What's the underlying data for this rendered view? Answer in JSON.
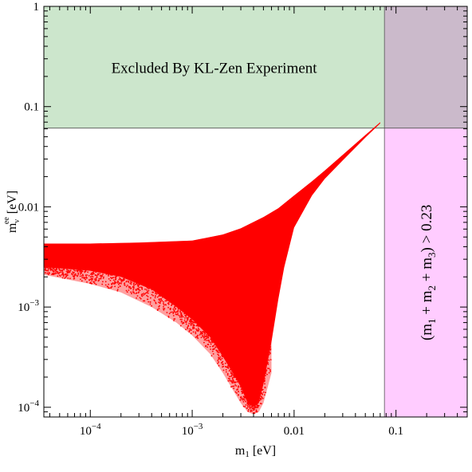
{
  "chart_data": {
    "type": "scatter",
    "title": "",
    "xlabel": {
      "main": "m",
      "sub": "1",
      "unit": " [eV]"
    },
    "ylabel": {
      "main": "m",
      "sub": "ν",
      "sup": "ee",
      "unit": " [eV]"
    },
    "x_scale": "log",
    "y_scale": "log",
    "xlim": [
      3.5e-05,
      0.5
    ],
    "ylim": [
      8e-05,
      1
    ],
    "grid": false,
    "x_ticks": [
      {
        "value": 0.0001,
        "base": "10",
        "exp": "−4"
      },
      {
        "value": 0.001,
        "base": "10",
        "exp": "−3"
      },
      {
        "value": 0.01,
        "label": "0.01"
      },
      {
        "value": 0.1,
        "label": "0.1"
      }
    ],
    "y_ticks": [
      {
        "value": 0.0001,
        "base": "10",
        "exp": "−4"
      },
      {
        "value": 0.001,
        "base": "10",
        "exp": "−3"
      },
      {
        "value": 0.01,
        "label": "0.01"
      },
      {
        "value": 0.1,
        "label": "0.1"
      },
      {
        "value": 1,
        "label": "1"
      }
    ],
    "regions": {
      "excluded_kl_zen": {
        "label": "Excluded By KL-Zen Experiment",
        "x_range": [
          3.5e-05,
          0.5
        ],
        "y_range": [
          0.061,
          1
        ],
        "color": "#cce6cc"
      },
      "sum_mass_excluded": {
        "label": {
          "open": "(m",
          "s1": "1",
          "plus1": " + m",
          "s2": "2",
          "plus2": " + m",
          "s3": "3",
          "close": ") > 0.23"
        },
        "x_range": [
          0.077,
          0.5
        ],
        "y_range": [
          8e-05,
          1
        ],
        "color": "#ffccff"
      },
      "overlap": {
        "x_range": [
          0.077,
          0.5
        ],
        "y_range": [
          0.061,
          1
        ],
        "color": "#cbbacb"
      }
    },
    "series": [
      {
        "color": "#ff0000",
        "upper_edge": [
          [
            3.5e-05,
            0.0043
          ],
          [
            0.0001,
            0.0043
          ],
          [
            0.0003,
            0.0044
          ],
          [
            0.001,
            0.0046
          ],
          [
            0.002,
            0.0053
          ],
          [
            0.003,
            0.0061
          ],
          [
            0.005,
            0.0079
          ],
          [
            0.007,
            0.0097
          ],
          [
            0.01,
            0.013
          ],
          [
            0.015,
            0.018
          ],
          [
            0.02,
            0.023
          ],
          [
            0.03,
            0.033
          ],
          [
            0.05,
            0.052
          ],
          [
            0.07,
            0.07
          ]
        ],
        "lower_edge": [
          [
            3.5e-05,
            0.0025
          ],
          [
            0.0001,
            0.0023
          ],
          [
            0.0002,
            0.002
          ],
          [
            0.0004,
            0.0015
          ],
          [
            0.0007,
            0.001
          ],
          [
            0.001,
            0.00075
          ],
          [
            0.0015,
            0.0005
          ],
          [
            0.002,
            0.00032
          ],
          [
            0.0025,
            0.00022
          ],
          [
            0.003,
            0.00016
          ],
          [
            0.0035,
            0.00011
          ],
          [
            0.004,
            0.0001
          ],
          [
            0.0045,
            0.00011
          ],
          [
            0.005,
            0.00017
          ],
          [
            0.006,
            0.00045
          ],
          [
            0.007,
            0.0012
          ],
          [
            0.008,
            0.0025
          ],
          [
            0.01,
            0.0062
          ],
          [
            0.015,
            0.013
          ],
          [
            0.02,
            0.019
          ],
          [
            0.03,
            0.029
          ],
          [
            0.05,
            0.049
          ],
          [
            0.07,
            0.068
          ]
        ],
        "outer_lower_edge": [
          [
            3.5e-05,
            0.0021
          ],
          [
            0.0001,
            0.0017
          ],
          [
            0.0002,
            0.0014
          ],
          [
            0.0004,
            0.001
          ],
          [
            0.0007,
            0.0007
          ],
          [
            0.001,
            0.00052
          ],
          [
            0.0015,
            0.00034
          ],
          [
            0.002,
            0.00022
          ],
          [
            0.0025,
            0.00015
          ],
          [
            0.003,
            0.00011
          ],
          [
            0.0035,
            9e-05
          ],
          [
            0.004,
            8.5e-05
          ],
          [
            0.0045,
            9e-05
          ],
          [
            0.005,
            0.00011
          ],
          [
            0.006,
            0.00022
          ]
        ]
      }
    ]
  }
}
